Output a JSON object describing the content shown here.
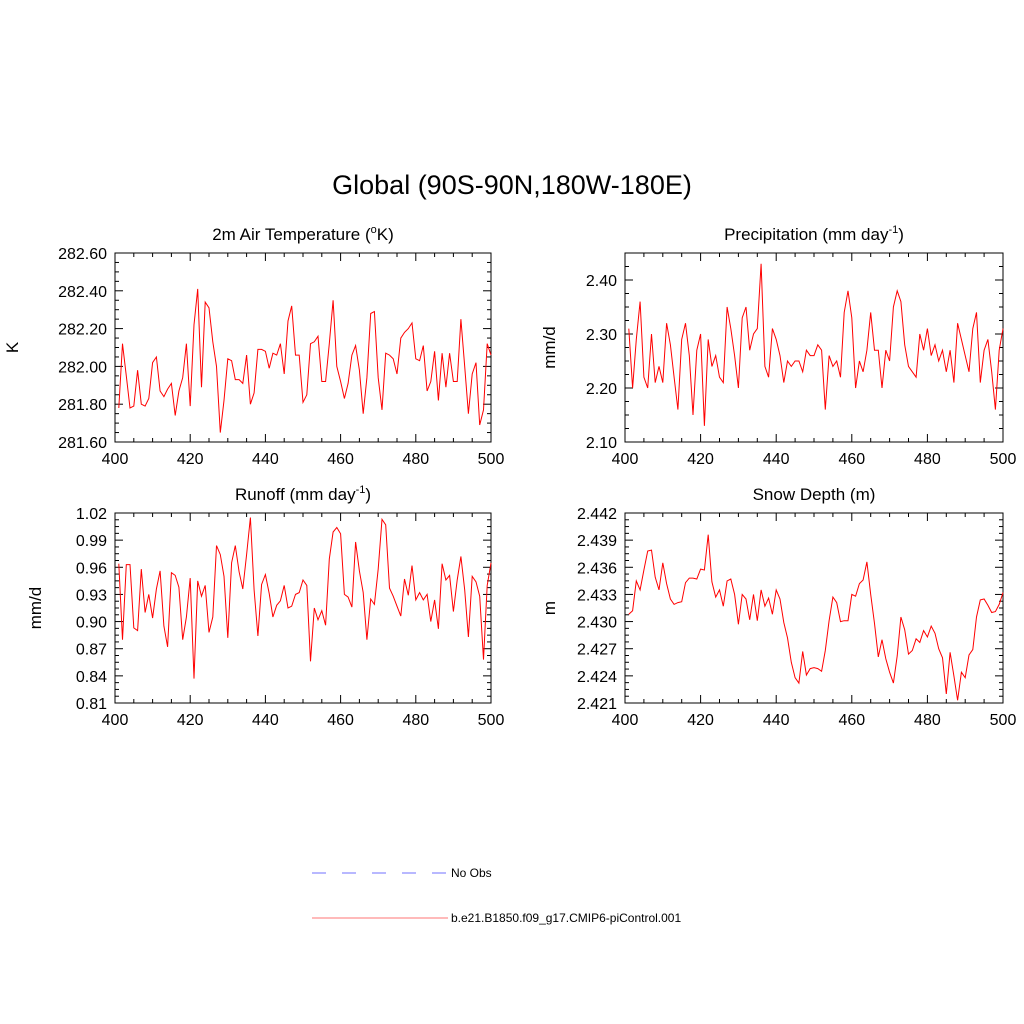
{
  "figure": {
    "title": "Global (90S-90N,180W-180E)",
    "line_color": "#ff0000",
    "obs_color": "#a0a0ff"
  },
  "legend": {
    "items": [
      {
        "label": "No Obs",
        "style": "dashed",
        "color": "#a0a0ff"
      },
      {
        "label": "b.e21.B1850.f09_g17.CMIP6-piControl.001",
        "style": "solid",
        "color": "#ff0000"
      }
    ]
  },
  "chart_data": [
    {
      "type": "line",
      "title_main": "2m Air Temperature (",
      "title_sup": "o",
      "title_end": "K)",
      "ylabel": "K",
      "xlim": [
        400,
        500
      ],
      "ylim": [
        281.6,
        282.6
      ],
      "xticks": [
        "400",
        "420",
        "440",
        "460",
        "480",
        "500"
      ],
      "yticks": [
        "281.60",
        "281.80",
        "282.00",
        "282.20",
        "282.40",
        "282.60"
      ],
      "x_start": 401,
      "values": [
        281.78,
        282.12,
        281.95,
        281.78,
        281.79,
        281.98,
        281.8,
        281.79,
        281.83,
        282.02,
        282.05,
        281.87,
        281.84,
        281.88,
        281.91,
        281.74,
        281.87,
        281.94,
        282.12,
        281.79,
        282.22,
        282.41,
        281.89,
        282.34,
        282.31,
        282.13,
        282.0,
        281.65,
        281.82,
        282.04,
        282.03,
        281.93,
        281.93,
        281.91,
        282.06,
        281.8,
        281.86,
        282.09,
        282.09,
        282.08,
        281.99,
        282.07,
        282.06,
        282.12,
        281.96,
        282.24,
        282.32,
        282.06,
        282.06,
        281.81,
        281.85,
        282.12,
        282.13,
        282.16,
        281.92,
        281.92,
        282.12,
        282.35,
        282.0,
        281.92,
        281.83,
        281.91,
        282.06,
        282.11,
        281.98,
        281.75,
        281.94,
        282.28,
        282.29,
        281.94,
        281.77,
        282.07,
        282.06,
        282.04,
        281.96,
        282.15,
        282.18,
        282.2,
        282.23,
        282.04,
        282.03,
        282.11,
        281.87,
        281.92,
        282.08,
        281.82,
        282.07,
        281.89,
        282.07,
        281.92,
        281.92,
        282.25,
        282.0,
        281.75,
        281.96,
        282.02,
        281.69,
        281.77,
        282.12,
        282.06
      ]
    },
    {
      "type": "line",
      "title_main": "Precipitation (mm day",
      "title_sup": "-1",
      "title_end": ")",
      "ylabel": "mm/d",
      "xlim": [
        400,
        500
      ],
      "ylim": [
        2.1,
        2.45
      ],
      "xticks": [
        "400",
        "420",
        "440",
        "460",
        "480",
        "500"
      ],
      "yticks": [
        "2.10",
        "2.20",
        "2.30",
        "2.40"
      ],
      "ytick_values": [
        2.1,
        2.2,
        2.3,
        2.4
      ],
      "x_start": 401,
      "values": [
        2.31,
        2.2,
        2.29,
        2.36,
        2.22,
        2.2,
        2.3,
        2.21,
        2.24,
        2.21,
        2.32,
        2.28,
        2.22,
        2.16,
        2.29,
        2.32,
        2.26,
        2.15,
        2.27,
        2.3,
        2.13,
        2.29,
        2.24,
        2.26,
        2.22,
        2.21,
        2.35,
        2.31,
        2.26,
        2.2,
        2.33,
        2.35,
        2.27,
        2.3,
        2.31,
        2.43,
        2.24,
        2.22,
        2.31,
        2.29,
        2.26,
        2.21,
        2.25,
        2.24,
        2.25,
        2.25,
        2.23,
        2.27,
        2.26,
        2.26,
        2.28,
        2.27,
        2.16,
        2.26,
        2.24,
        2.25,
        2.22,
        2.34,
        2.38,
        2.33,
        2.2,
        2.25,
        2.23,
        2.27,
        2.34,
        2.27,
        2.27,
        2.2,
        2.27,
        2.25,
        2.35,
        2.38,
        2.36,
        2.28,
        2.24,
        2.23,
        2.22,
        2.3,
        2.27,
        2.31,
        2.26,
        2.28,
        2.25,
        2.27,
        2.23,
        2.27,
        2.21,
        2.32,
        2.29,
        2.26,
        2.23,
        2.31,
        2.34,
        2.21,
        2.27,
        2.29,
        2.23,
        2.16,
        2.27,
        2.31
      ]
    },
    {
      "type": "line",
      "title_main": "Runoff (mm day",
      "title_sup": "-1",
      "title_end": ")",
      "ylabel": "mm/d",
      "xlim": [
        400,
        500
      ],
      "ylim": [
        0.81,
        1.02
      ],
      "xticks": [
        "400",
        "420",
        "440",
        "460",
        "480",
        "500"
      ],
      "yticks": [
        "0.81",
        "0.84",
        "0.87",
        "0.90",
        "0.93",
        "0.96",
        "0.99",
        "1.02"
      ],
      "x_start": 401,
      "values": [
        0.964,
        0.88,
        0.963,
        0.963,
        0.893,
        0.89,
        0.958,
        0.91,
        0.93,
        0.904,
        0.936,
        0.956,
        0.895,
        0.872,
        0.954,
        0.951,
        0.938,
        0.88,
        0.905,
        0.948,
        0.837,
        0.945,
        0.928,
        0.94,
        0.888,
        0.905,
        0.984,
        0.974,
        0.95,
        0.882,
        0.965,
        0.984,
        0.955,
        0.936,
        0.974,
        1.015,
        0.935,
        0.884,
        0.941,
        0.952,
        0.931,
        0.905,
        0.918,
        0.923,
        0.94,
        0.915,
        0.917,
        0.93,
        0.932,
        0.946,
        0.94,
        0.856,
        0.915,
        0.902,
        0.912,
        0.896,
        0.969,
        0.999,
        1.004,
        0.997,
        0.93,
        0.927,
        0.916,
        0.988,
        0.956,
        0.932,
        0.88,
        0.925,
        0.919,
        0.958,
        1.013,
        1.007,
        0.937,
        0.928,
        0.917,
        0.906,
        0.947,
        0.929,
        0.962,
        0.924,
        0.932,
        0.924,
        0.93,
        0.9,
        0.924,
        0.892,
        0.964,
        0.946,
        0.951,
        0.911,
        0.946,
        0.972,
        0.935,
        0.883,
        0.95,
        0.944,
        0.928,
        0.858,
        0.94,
        0.965
      ]
    },
    {
      "type": "line",
      "title_main": "Snow Depth (m)",
      "title_sup": "",
      "title_end": "",
      "ylabel": "m",
      "xlim": [
        400,
        500
      ],
      "ylim": [
        2.421,
        2.442
      ],
      "xticks": [
        "400",
        "420",
        "440",
        "460",
        "480",
        "500"
      ],
      "yticks": [
        "2.421",
        "2.424",
        "2.427",
        "2.430",
        "2.433",
        "2.436",
        "2.439",
        "2.442"
      ],
      "x_start": 401,
      "values": [
        2.4308,
        2.4312,
        2.4345,
        2.4335,
        2.4357,
        2.4378,
        2.4379,
        2.4349,
        2.4335,
        2.4365,
        2.4342,
        2.4325,
        2.4319,
        2.4321,
        2.4322,
        2.4343,
        2.4348,
        2.4348,
        2.4347,
        2.4358,
        2.4357,
        2.4396,
        2.4344,
        2.4327,
        2.4335,
        2.4317,
        2.4345,
        2.4347,
        2.433,
        2.4297,
        2.433,
        2.4325,
        2.4302,
        2.433,
        2.4301,
        2.4335,
        2.4317,
        2.4326,
        2.4308,
        2.4335,
        2.4325,
        2.4299,
        2.4282,
        2.4255,
        2.4238,
        2.4232,
        2.4267,
        2.4241,
        2.4248,
        2.4249,
        2.4248,
        2.4245,
        2.4268,
        2.4301,
        2.4327,
        2.4321,
        2.43,
        2.4301,
        2.4301,
        2.433,
        2.4328,
        2.4342,
        2.4346,
        2.4366,
        2.433,
        2.4298,
        2.4261,
        2.428,
        2.4259,
        2.4244,
        2.4232,
        2.4262,
        2.4305,
        2.4291,
        2.4264,
        2.4268,
        2.4281,
        2.4277,
        2.429,
        2.4283,
        2.4295,
        2.4287,
        2.427,
        2.426,
        2.422,
        2.4266,
        2.424,
        2.4213,
        2.4244,
        2.4238,
        2.4263,
        2.4269,
        2.4305,
        2.4324,
        2.4325,
        2.4318,
        2.431,
        2.4311,
        2.4319,
        2.4332
      ]
    }
  ]
}
